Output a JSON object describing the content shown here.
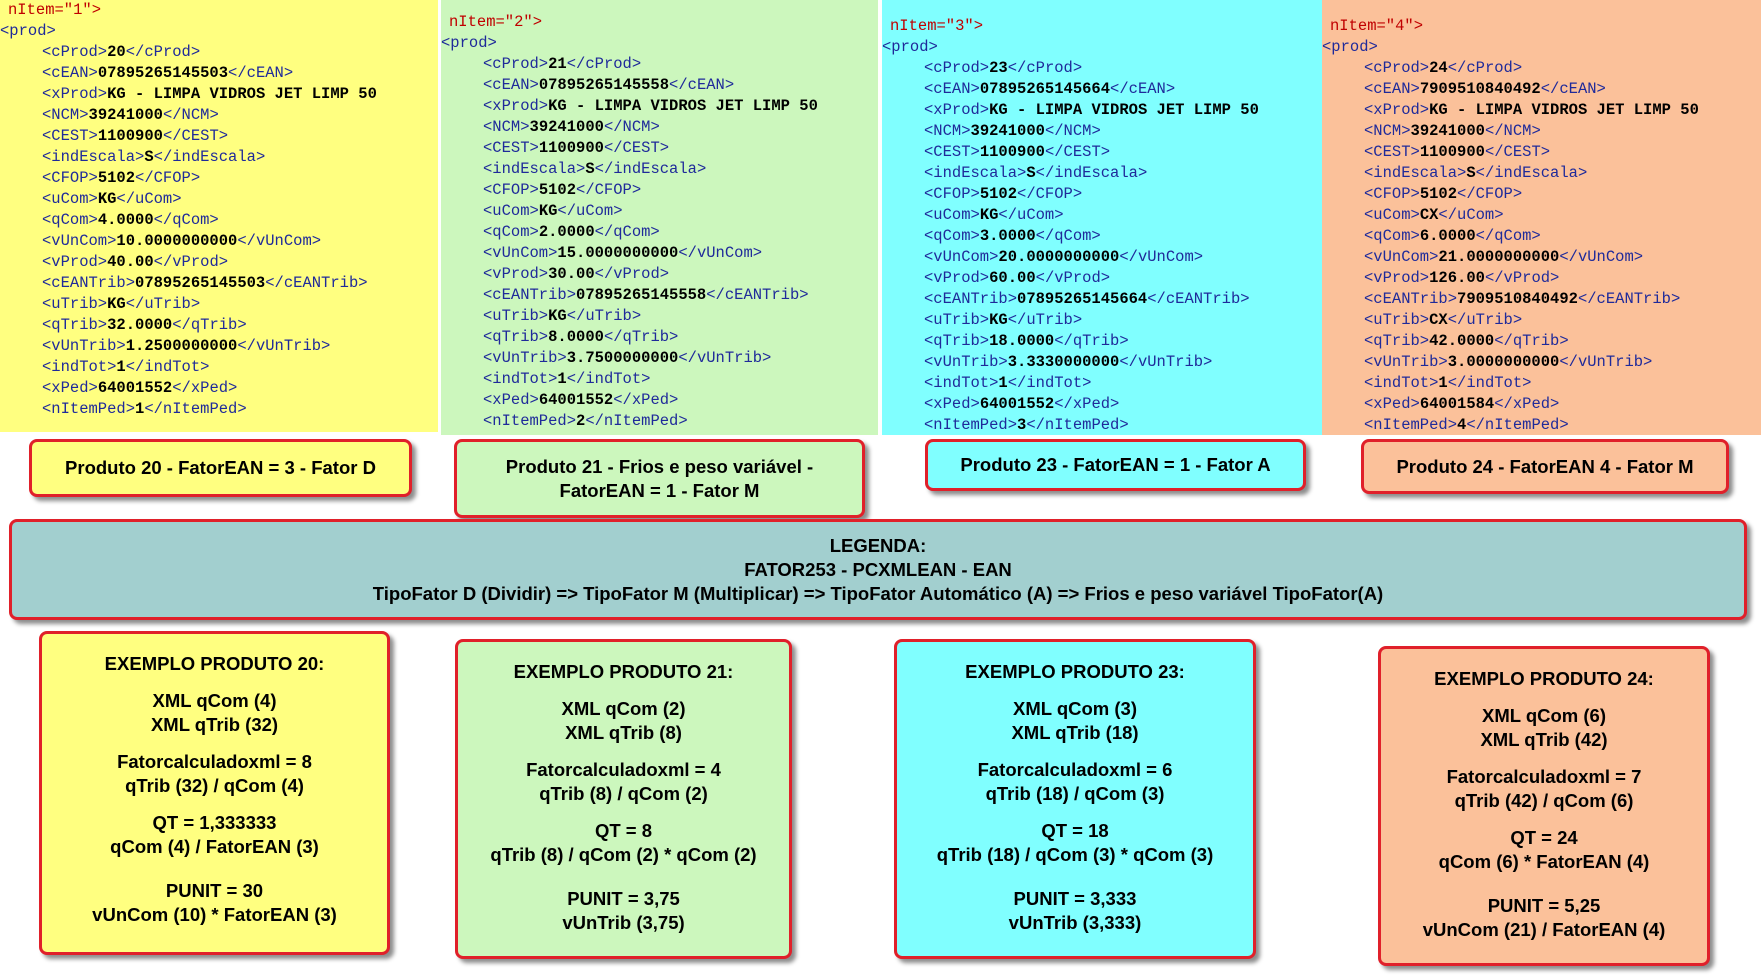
{
  "panels": [
    {
      "header": "nItem=\"1\">",
      "root": "<prod>",
      "lines": [
        [
          "<cProd>",
          "20",
          "</cProd>"
        ],
        [
          "<cEAN>",
          "07895265145503",
          "</cEAN>"
        ],
        [
          "<xProd>",
          "KG - LIMPA VIDROS JET LIMP 50"
        ],
        [
          "<NCM>",
          "39241000",
          "</NCM>"
        ],
        [
          "<CEST>",
          "1100900",
          "</CEST>"
        ],
        [
          "<indEscala>",
          "S",
          "</indEscala>"
        ],
        [
          "<CFOP>",
          "5102",
          "</CFOP>"
        ],
        [
          "<uCom>",
          "KG",
          "</uCom>"
        ],
        [
          "<qCom>",
          "4.0000",
          "</qCom>"
        ],
        [
          "<vUnCom>",
          "10.0000000000",
          "</vUnCom>"
        ],
        [
          "<vProd>",
          "40.00",
          "</vProd>"
        ],
        [
          "<cEANTrib>",
          "07895265145503",
          "</cEANTrib>"
        ],
        [
          "<uTrib>",
          "KG",
          "</uTrib>"
        ],
        [
          "<qTrib>",
          "32.0000",
          "</qTrib>"
        ],
        [
          "<vUnTrib>",
          "1.2500000000",
          "</vUnTrib>"
        ],
        [
          "<indTot>",
          "1",
          "</indTot>"
        ],
        [
          "<xPed>",
          "64001552",
          "</xPed>"
        ],
        [
          "<nItemPed>",
          "1",
          "</nItemPed>"
        ]
      ]
    },
    {
      "header": "nItem=\"2\">",
      "root": "<prod>",
      "lines": [
        [
          "<cProd>",
          "21",
          "</cProd>"
        ],
        [
          "<cEAN>",
          "07895265145558",
          "</cEAN>"
        ],
        [
          "<xProd>",
          "KG - LIMPA VIDROS JET LIMP 50"
        ],
        [
          "<NCM>",
          "39241000",
          "</NCM>"
        ],
        [
          "<CEST>",
          "1100900",
          "</CEST>"
        ],
        [
          "<indEscala>",
          "S",
          "</indEscala>"
        ],
        [
          "<CFOP>",
          "5102",
          "</CFOP>"
        ],
        [
          "<uCom>",
          "KG",
          "</uCom>"
        ],
        [
          "<qCom>",
          "2.0000",
          "</qCom>"
        ],
        [
          "<vUnCom>",
          "15.0000000000",
          "</vUnCom>"
        ],
        [
          "<vProd>",
          "30.00",
          "</vProd>"
        ],
        [
          "<cEANTrib>",
          "07895265145558",
          "</cEANTrib>"
        ],
        [
          "<uTrib>",
          "KG",
          "</uTrib>"
        ],
        [
          "<qTrib>",
          "8.0000",
          "</qTrib>"
        ],
        [
          "<vUnTrib>",
          "3.7500000000",
          "</vUnTrib>"
        ],
        [
          "<indTot>",
          "1",
          "</indTot>"
        ],
        [
          "<xPed>",
          "64001552",
          "</xPed>"
        ],
        [
          "<nItemPed>",
          "2",
          "</nItemPed>"
        ]
      ]
    },
    {
      "header": "nItem=\"3\">",
      "root": "<prod>",
      "lines": [
        [
          "<cProd>",
          "23",
          "</cProd>"
        ],
        [
          "<cEAN>",
          "07895265145664",
          "</cEAN>"
        ],
        [
          "<xProd>",
          "KG - LIMPA VIDROS JET LIMP 50"
        ],
        [
          "<NCM>",
          "39241000",
          "</NCM>"
        ],
        [
          "<CEST>",
          "1100900",
          "</CEST>"
        ],
        [
          "<indEscala>",
          "S",
          "</indEscala>"
        ],
        [
          "<CFOP>",
          "5102",
          "</CFOP>"
        ],
        [
          "<uCom>",
          "KG",
          "</uCom>"
        ],
        [
          "<qCom>",
          "3.0000",
          "</qCom>"
        ],
        [
          "<vUnCom>",
          "20.0000000000",
          "</vUnCom>"
        ],
        [
          "<vProd>",
          "60.00",
          "</vProd>"
        ],
        [
          "<cEANTrib>",
          "07895265145664",
          "</cEANTrib>"
        ],
        [
          "<uTrib>",
          "KG",
          "</uTrib>"
        ],
        [
          "<qTrib>",
          "18.0000",
          "</qTrib>"
        ],
        [
          "<vUnTrib>",
          "3.3330000000",
          "</vUnTrib>"
        ],
        [
          "<indTot>",
          "1",
          "</indTot>"
        ],
        [
          "<xPed>",
          "64001552",
          "</xPed>"
        ],
        [
          "<nItemPed>",
          "3",
          "</nItemPed>"
        ]
      ]
    },
    {
      "header": "nItem=\"4\">",
      "root": "<prod>",
      "lines": [
        [
          "<cProd>",
          "24",
          "</cProd>"
        ],
        [
          "<cEAN>",
          "7909510840492",
          "</cEAN>"
        ],
        [
          "<xProd>",
          "KG - LIMPA VIDROS JET LIMP 50"
        ],
        [
          "<NCM>",
          "39241000",
          "</NCM>"
        ],
        [
          "<CEST>",
          "1100900",
          "</CEST>"
        ],
        [
          "<indEscala>",
          "S",
          "</indEscala>"
        ],
        [
          "<CFOP>",
          "5102",
          "</CFOP>"
        ],
        [
          "<uCom>",
          "CX",
          "</uCom>"
        ],
        [
          "<qCom>",
          "6.0000",
          "</qCom>"
        ],
        [
          "<vUnCom>",
          "21.0000000000",
          "</vUnCom>"
        ],
        [
          "<vProd>",
          "126.00",
          "</vProd>"
        ],
        [
          "<cEANTrib>",
          "7909510840492",
          "</cEANTrib>"
        ],
        [
          "<uTrib>",
          "CX",
          "</uTrib>"
        ],
        [
          "<qTrib>",
          "42.0000",
          "</qTrib>"
        ],
        [
          "<vUnTrib>",
          "3.0000000000",
          "</vUnTrib>"
        ],
        [
          "<indTot>",
          "1",
          "</indTot>"
        ],
        [
          "<xPed>",
          "64001584",
          "</xPed>"
        ],
        [
          "<nItemPed>",
          "4",
          "</nItemPed>"
        ]
      ]
    }
  ],
  "labels": [
    "Produto 20 - FatorEAN = 3 - Fator D",
    "Produto 21 - Frios e peso variável - FatorEAN = 1 - Fator M",
    "Produto 23 - FatorEAN = 1 - Fator A",
    "Produto 24 - FatorEAN 4 - Fator M"
  ],
  "legend": [
    "LEGENDA:",
    "FATOR253 - PCXMLEAN - EAN",
    "TipoFator D (Dividir) => TipoFator M (Multiplicar) => TipoFator Automático (A) => Frios e peso variável TipoFator(A)"
  ],
  "examples": [
    {
      "title": "EXEMPLO PRODUTO 20:",
      "groups": [
        [
          "XML qCom (4)",
          "XML qTrib (32)"
        ],
        [
          "Fatorcalculadoxml = 8",
          "qTrib (32) / qCom (4)"
        ],
        [
          "QT = 1,333333",
          "qCom (4) / FatorEAN (3)"
        ],
        [
          "PUNIT = 30",
          "vUnCom (10) * FatorEAN (3)"
        ]
      ]
    },
    {
      "title": "EXEMPLO PRODUTO 21:",
      "groups": [
        [
          "XML qCom (2)",
          "XML qTrib (8)"
        ],
        [
          "Fatorcalculadoxml = 4",
          "qTrib (8) / qCom (2)"
        ],
        [
          "QT = 8",
          "qTrib (8) / qCom (2) * qCom (2)"
        ],
        [
          "PUNIT = 3,75",
          "vUnTrib (3,75)"
        ]
      ]
    },
    {
      "title": "EXEMPLO PRODUTO 23:",
      "groups": [
        [
          "XML qCom (3)",
          "XML qTrib (18)"
        ],
        [
          "Fatorcalculadoxml = 6",
          "qTrib (18) / qCom (3)"
        ],
        [
          "QT = 18",
          "qTrib (18) / qCom (3) * qCom (3)"
        ],
        [
          "PUNIT = 3,333",
          "vUnTrib (3,333)"
        ]
      ]
    },
    {
      "title": "EXEMPLO PRODUTO 24:",
      "groups": [
        [
          "XML qCom (6)",
          "XML qTrib (42)"
        ],
        [
          "Fatorcalculadoxml = 7",
          "qTrib (42) / qCom (6)"
        ],
        [
          "QT = 24",
          "qCom (6) * FatorEAN (4)"
        ],
        [
          "PUNIT = 5,25",
          "vUnCom (21) / FatorEAN (4)"
        ]
      ]
    }
  ]
}
